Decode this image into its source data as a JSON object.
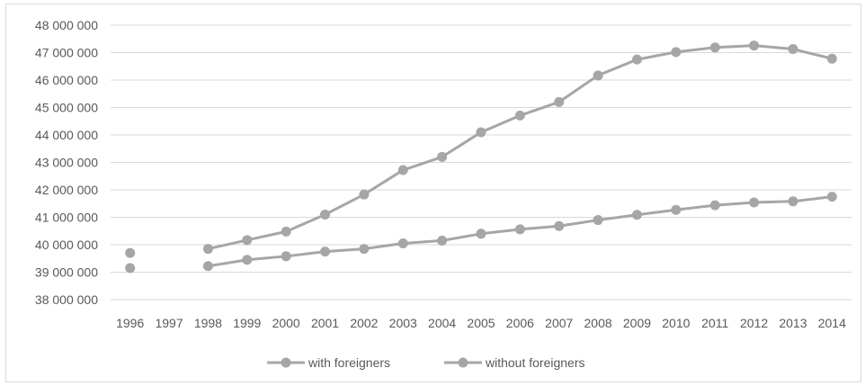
{
  "chart_data": {
    "type": "line",
    "title": "",
    "xlabel": "",
    "ylabel": "",
    "categories": [
      "1996",
      "1997",
      "1998",
      "1999",
      "2000",
      "2001",
      "2002",
      "2003",
      "2004",
      "2005",
      "2006",
      "2007",
      "2008",
      "2009",
      "2010",
      "2011",
      "2012",
      "2013",
      "2014"
    ],
    "ylim": [
      38000000,
      48000000
    ],
    "yticks": [
      38000000,
      39000000,
      40000000,
      41000000,
      42000000,
      43000000,
      44000000,
      45000000,
      46000000,
      47000000,
      48000000
    ],
    "ytick_labels": [
      "38 000 000",
      "39 000 000",
      "40 000 000",
      "41 000 000",
      "42 000 000",
      "43 000 000",
      "44 000 000",
      "45 000 000",
      "46 000 000",
      "47 000 000",
      "48 000 000"
    ],
    "grid": true,
    "legend_position": "bottom",
    "series": [
      {
        "name": "with foreigners",
        "color": "#a6a6a6",
        "values": [
          39700000,
          null,
          39850000,
          40170000,
          40480000,
          41100000,
          41830000,
          42720000,
          43200000,
          44100000,
          44710000,
          45200000,
          46170000,
          46750000,
          47020000,
          47190000,
          47260000,
          47130000,
          46780000
        ]
      },
      {
        "name": "without foreigners",
        "color": "#a6a6a6",
        "values": [
          39150000,
          null,
          39220000,
          39450000,
          39580000,
          39750000,
          39850000,
          40050000,
          40150000,
          40400000,
          40560000,
          40680000,
          40900000,
          41090000,
          41270000,
          41440000,
          41540000,
          41580000,
          41750000
        ]
      }
    ]
  }
}
